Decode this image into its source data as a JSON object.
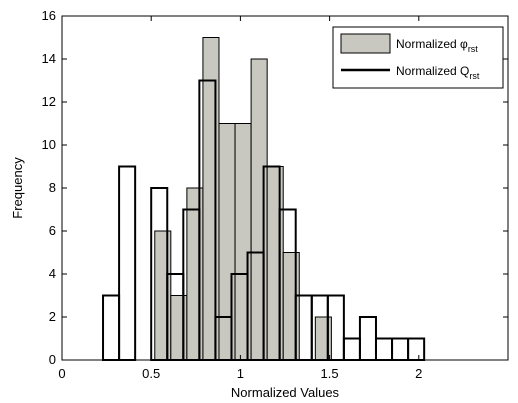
{
  "chart_data": {
    "type": "bar",
    "title": "",
    "xlabel": "Normalized Values",
    "ylabel": "Frequency",
    "xlim": [
      0,
      2.5
    ],
    "ylim": [
      0,
      16
    ],
    "xticks": [
      0,
      0.5,
      1,
      1.5,
      2
    ],
    "xtick_labels": [
      "0",
      "0.5",
      "1",
      "1.5",
      "2"
    ],
    "yticks": [
      0,
      2,
      4,
      6,
      8,
      10,
      12,
      14,
      16
    ],
    "ytick_labels": [
      "0",
      "2",
      "4",
      "6",
      "8",
      "10",
      "12",
      "14",
      "16"
    ],
    "grid": false,
    "legend_position": "top-right",
    "series": [
      {
        "name": "Normalized φrst",
        "legend_main": "Normalized ",
        "legend_symbol": "φ",
        "legend_sub": "rst",
        "style": "filled",
        "color": "#c8c8c0",
        "bin_width": 0.09,
        "bins": [
          {
            "x0": 0.52,
            "count": 6
          },
          {
            "x0": 0.61,
            "count": 3
          },
          {
            "x0": 0.7,
            "count": 8
          },
          {
            "x0": 0.79,
            "count": 15
          },
          {
            "x0": 0.88,
            "count": 11
          },
          {
            "x0": 0.97,
            "count": 11
          },
          {
            "x0": 1.06,
            "count": 14
          },
          {
            "x0": 1.15,
            "count": 9
          },
          {
            "x0": 1.24,
            "count": 5
          },
          {
            "x0": 1.42,
            "count": 2
          }
        ]
      },
      {
        "name": "Normalized Qrst",
        "legend_main": "Normalized Q",
        "legend_sub": "rst",
        "style": "outline",
        "color": "#000000",
        "bin_width": 0.09,
        "bins": [
          {
            "x0": 0.23,
            "count": 3
          },
          {
            "x0": 0.32,
            "count": 9
          },
          {
            "x0": 0.41,
            "count": 0
          },
          {
            "x0": 0.5,
            "count": 8
          },
          {
            "x0": 0.59,
            "count": 4
          },
          {
            "x0": 0.68,
            "count": 7
          },
          {
            "x0": 0.77,
            "count": 13
          },
          {
            "x0": 0.86,
            "count": 2
          },
          {
            "x0": 0.95,
            "count": 4
          },
          {
            "x0": 1.04,
            "count": 5
          },
          {
            "x0": 1.13,
            "count": 9
          },
          {
            "x0": 1.22,
            "count": 7
          },
          {
            "x0": 1.31,
            "count": 3
          },
          {
            "x0": 1.4,
            "count": 3
          },
          {
            "x0": 1.49,
            "count": 3
          },
          {
            "x0": 1.58,
            "count": 1
          },
          {
            "x0": 1.67,
            "count": 2
          },
          {
            "x0": 1.76,
            "count": 1
          },
          {
            "x0": 1.85,
            "count": 1
          },
          {
            "x0": 1.94,
            "count": 1
          }
        ]
      }
    ]
  }
}
